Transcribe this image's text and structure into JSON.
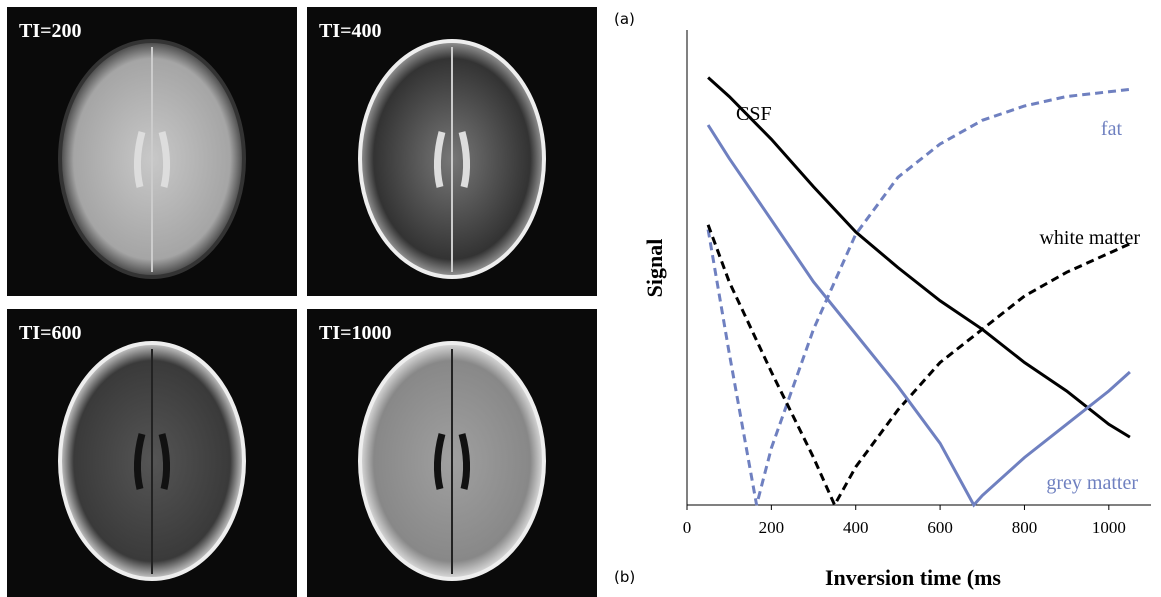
{
  "images": [
    {
      "label": "TI=200"
    },
    {
      "label": "TI=400"
    },
    {
      "label": "TI=600"
    },
    {
      "label": "TI=1000"
    }
  ],
  "panel_labels": [
    "(a)",
    "(b)"
  ],
  "chart_data": {
    "type": "line",
    "xlabel": "Inversion time (ms",
    "ylabel": "Signal",
    "xlim": [
      0,
      1100
    ],
    "ylim": [
      0,
      1
    ],
    "xticks": [
      0,
      200,
      400,
      600,
      800,
      1000
    ],
    "series": [
      {
        "name": "CSF",
        "color": "#000000",
        "dashed": false,
        "x": [
          50,
          100,
          200,
          300,
          400,
          500,
          600,
          700,
          800,
          900,
          1000,
          1050
        ],
        "values": [
          0.9,
          0.86,
          0.77,
          0.67,
          0.575,
          0.5,
          0.43,
          0.37,
          0.3,
          0.24,
          0.17,
          0.143
        ]
      },
      {
        "name": "fat",
        "color": "#6f80c0",
        "dashed": true,
        "x": [
          50,
          100,
          165,
          200,
          300,
          400,
          500,
          600,
          700,
          800,
          900,
          1000,
          1050
        ],
        "values": [
          0.58,
          0.32,
          0,
          0.12,
          0.37,
          0.57,
          0.69,
          0.76,
          0.81,
          0.84,
          0.86,
          0.87,
          0.875
        ]
      },
      {
        "name": "white matter",
        "color": "#000000",
        "dashed": true,
        "x": [
          50,
          100,
          200,
          300,
          350,
          400,
          500,
          600,
          700,
          800,
          900,
          1000,
          1050
        ],
        "values": [
          0.59,
          0.47,
          0.28,
          0.1,
          0,
          0.08,
          0.2,
          0.3,
          0.37,
          0.44,
          0.49,
          0.53,
          0.55
        ]
      },
      {
        "name": "grey matter",
        "color": "#6f80c0",
        "dashed": false,
        "x": [
          50,
          100,
          200,
          300,
          400,
          500,
          600,
          680,
          700,
          800,
          900,
          1000,
          1050
        ],
        "values": [
          0.8,
          0.73,
          0.6,
          0.47,
          0.36,
          0.25,
          0.13,
          0,
          0.02,
          0.1,
          0.17,
          0.24,
          0.28
        ]
      }
    ]
  }
}
